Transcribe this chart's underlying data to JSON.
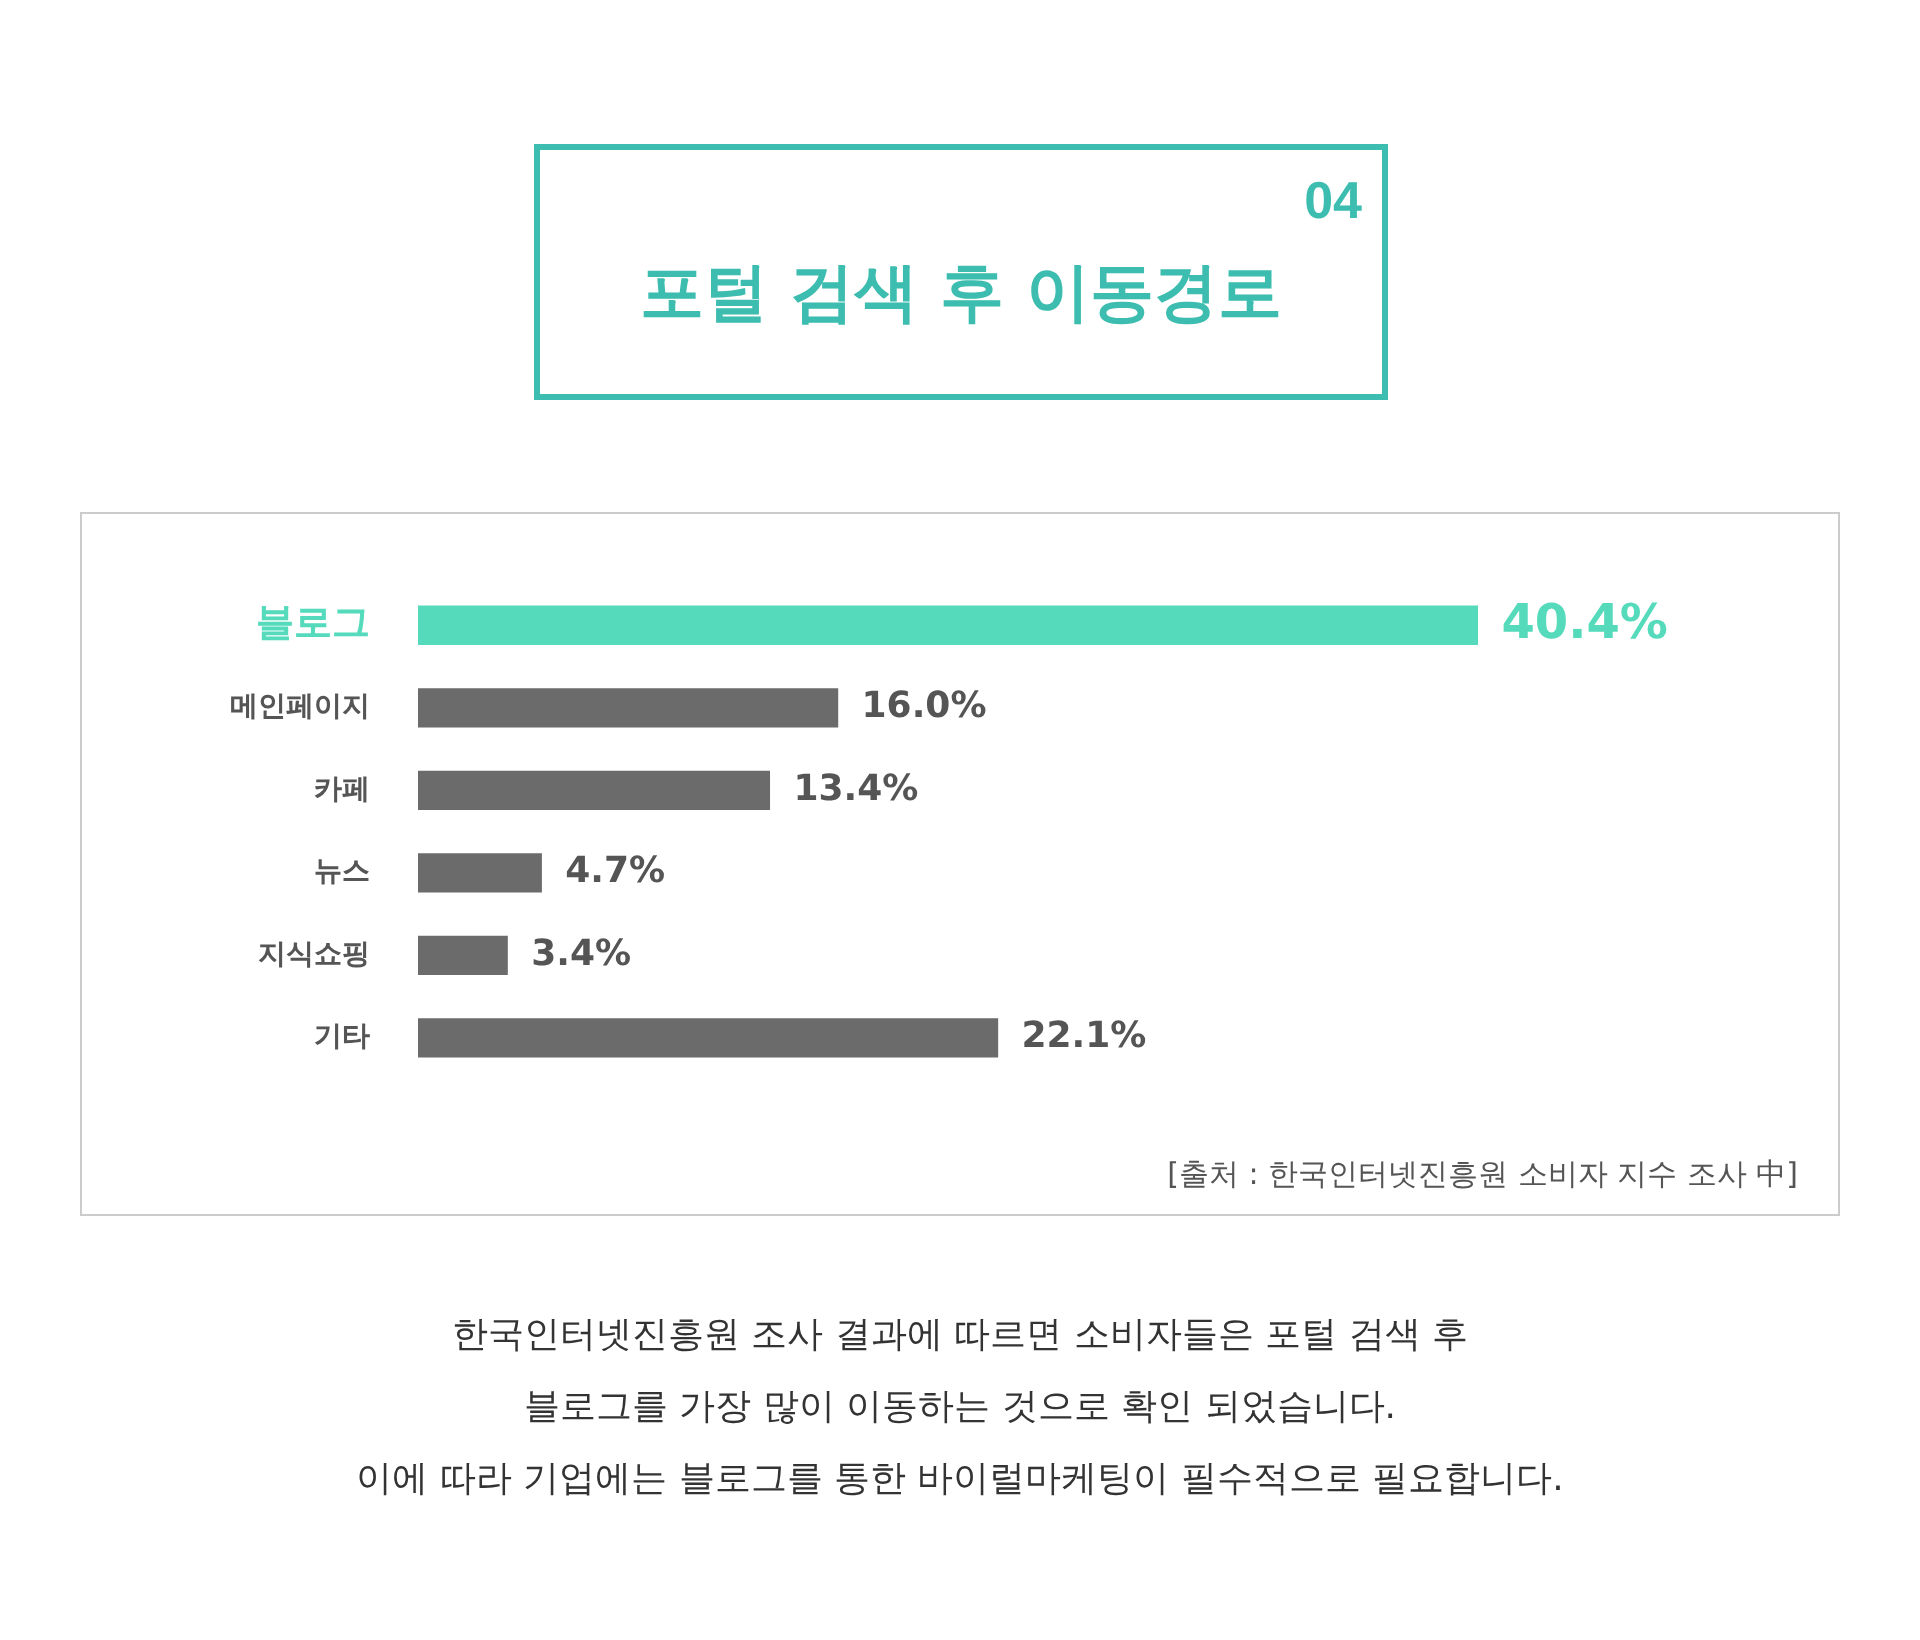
{
  "chart_data": {
    "type": "bar",
    "orientation": "horizontal",
    "title": "포털 검색 후 이동경로",
    "categories": [
      "블로그",
      "메인페이지",
      "카페",
      "뉴스",
      "지식쇼핑",
      "기타"
    ],
    "values": [
      40.4,
      16.0,
      13.4,
      4.7,
      3.4,
      22.1
    ],
    "value_labels": [
      "40.4%",
      "16.0%",
      "13.4%",
      "4.7%",
      "3.4%",
      "22.1%"
    ],
    "colors": [
      "#55dbbb",
      "#6b6b6b",
      "#6b6b6b",
      "#6b6b6b",
      "#6b6b6b",
      "#6b6b6b"
    ],
    "legend": false,
    "annotations": [
      "04",
      "[출처 : 한국인터넷진흥원 소비자 지수 조사 中]",
      "한국인터넷진흥원 조사 결과에 따르면 소비자들은 포털 검색 후",
      "블로그를 가장 많이 이동하는 것으로 확인 되었습니다.",
      "이에 따라 기업에는 블로그를 통한 바이럴마케팅이 필수적으로 필요합니다."
    ]
  }
}
